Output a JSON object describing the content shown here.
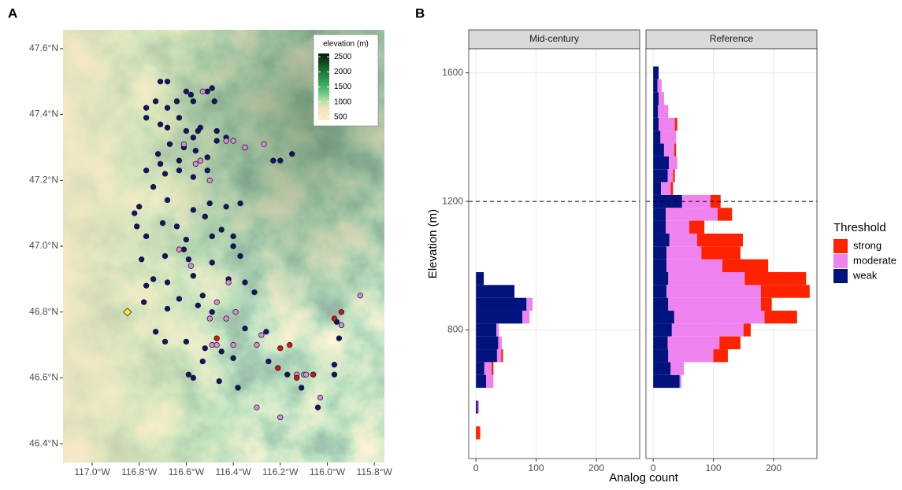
{
  "chart_data": [
    {
      "type": "map-scatter",
      "title": "A",
      "xlim": [
        -117.124,
        -115.757
      ],
      "ylim": [
        46.343,
        47.657
      ],
      "xticks": [
        {
          "value": -117.0,
          "label": "117.0°W"
        },
        {
          "value": -116.8,
          "label": "116.8°W"
        },
        {
          "value": -116.6,
          "label": "116.6°W"
        },
        {
          "value": -116.4,
          "label": "116.4°W"
        },
        {
          "value": -116.2,
          "label": "116.2°W"
        },
        {
          "value": -116.0,
          "label": "116.0°W"
        },
        {
          "value": -115.8,
          "label": "115.8°W"
        }
      ],
      "yticks": [
        {
          "value": 46.4,
          "label": "46.4°N"
        },
        {
          "value": 46.6,
          "label": "46.6°N"
        },
        {
          "value": 46.8,
          "label": "46.8°N"
        },
        {
          "value": 47.0,
          "label": "47.0°N"
        },
        {
          "value": 47.2,
          "label": "47.2°N"
        },
        {
          "value": 47.4,
          "label": "47.4°N"
        },
        {
          "value": 47.6,
          "label": "47.6°N"
        }
      ],
      "colorbar": {
        "title": "elevation (m)",
        "lim": [
          390,
          2610
        ],
        "ticks": [
          500,
          1000,
          1500,
          2000,
          2500
        ],
        "stops": [
          {
            "value": 390,
            "color": "#fde8c6"
          },
          {
            "value": 800,
            "color": "#f3e3b4"
          },
          {
            "value": 1100,
            "color": "#9fdca0"
          },
          {
            "value": 1500,
            "color": "#3fb36a"
          },
          {
            "value": 2000,
            "color": "#1c7a38"
          },
          {
            "value": 2610,
            "color": "#0a1a0a"
          }
        ]
      },
      "series": [
        {
          "color": "#14146e",
          "marker": "circle",
          "x": [
            -116.71,
            -116.68,
            -116.6,
            -116.58,
            -116.51,
            -116.49,
            -116.77,
            -116.73,
            -116.68,
            -116.64,
            -116.57,
            -116.48,
            -116.77,
            -116.71,
            -116.68,
            -116.63,
            -116.6,
            -116.55,
            -116.67,
            -116.61,
            -116.57,
            -116.54,
            -116.47,
            -116.72,
            -116.71,
            -116.63,
            -116.56,
            -116.51,
            -116.47,
            -116.43,
            -116.77,
            -116.69,
            -116.63,
            -116.57,
            -116.51,
            -116.74,
            -116.68,
            -116.57,
            -116.5,
            -116.43,
            -116.37,
            -116.23,
            -116.2,
            -116.15,
            -116.8,
            -116.82,
            -116.81,
            -116.77,
            -116.7,
            -116.64,
            -116.6,
            -116.52,
            -116.49,
            -116.45,
            -116.4,
            -116.4,
            -116.79,
            -116.69,
            -116.61,
            -116.59,
            -116.49,
            -116.37,
            -116.74,
            -116.77,
            -116.68,
            -116.57,
            -116.53,
            -116.42,
            -116.35,
            -116.78,
            -116.68,
            -116.63,
            -116.55,
            -116.49,
            -116.31,
            -116.73,
            -116.69,
            -116.6,
            -116.52,
            -116.45,
            -116.35,
            -116.26,
            -116.25,
            -116.59,
            -116.53,
            -116.46,
            -116.38,
            -116.4,
            -116.17,
            -116.11,
            -116.06,
            -115.97,
            -115.97,
            -115.95,
            -115.96,
            -116.04,
            -116.57
          ],
          "values": [
            47.5,
            47.5,
            47.47,
            47.46,
            47.47,
            47.48,
            47.42,
            47.44,
            47.42,
            47.44,
            47.44,
            47.44,
            47.39,
            47.37,
            47.36,
            47.39,
            47.35,
            47.35,
            47.31,
            47.3,
            47.33,
            47.36,
            47.35,
            47.28,
            47.25,
            47.26,
            47.29,
            47.27,
            47.32,
            47.33,
            47.23,
            47.22,
            47.23,
            47.21,
            47.23,
            47.18,
            47.14,
            47.11,
            47.13,
            47.12,
            47.13,
            47.26,
            47.26,
            47.28,
            47.12,
            47.1,
            47.06,
            47.03,
            47.07,
            47.06,
            47.02,
            47.09,
            47.03,
            47.05,
            47.03,
            47.0,
            46.96,
            46.97,
            46.99,
            46.96,
            46.95,
            46.97,
            46.9,
            46.88,
            46.89,
            46.91,
            46.85,
            46.9,
            46.89,
            46.83,
            46.81,
            46.84,
            46.82,
            46.8,
            46.86,
            46.74,
            46.71,
            46.71,
            46.69,
            46.68,
            46.75,
            46.74,
            46.65,
            46.61,
            46.65,
            46.59,
            46.57,
            46.66,
            46.61,
            46.57,
            46.61,
            46.61,
            46.64,
            46.72,
            46.77,
            46.51,
            46.6
          ]
        },
        {
          "color": "#dd88dd",
          "marker": "circle",
          "x": [
            -116.53,
            -116.61,
            -116.43,
            -116.4,
            -116.35,
            -116.27,
            -116.56,
            -116.54,
            -116.5,
            -116.63,
            -116.58,
            -116.42,
            -116.47,
            -116.43,
            -116.39,
            -116.5,
            -116.49,
            -116.47,
            -116.4,
            -116.3,
            -116.28,
            -116.13,
            -116.1,
            -116.3,
            -116.2,
            -116.03,
            -115.86,
            -115.94,
            -116.09
          ],
          "values": [
            47.47,
            47.31,
            47.32,
            47.32,
            47.3,
            47.31,
            47.25,
            47.26,
            47.2,
            46.99,
            46.94,
            46.89,
            46.83,
            46.78,
            46.8,
            46.78,
            46.7,
            46.7,
            46.7,
            46.7,
            46.73,
            46.61,
            46.61,
            46.51,
            46.48,
            46.54,
            46.85,
            46.76,
            46.61
          ]
        },
        {
          "color": "#dd1111",
          "marker": "circle",
          "x": [
            -115.94,
            -115.97,
            -116.2,
            -116.16,
            -116.21,
            -116.13,
            -116.06,
            -116.47
          ],
          "values": [
            46.8,
            46.78,
            46.69,
            46.7,
            46.63,
            46.6,
            46.61,
            46.72
          ]
        },
        {
          "color": "#ffee33",
          "marker": "diamond",
          "x": [
            -116.85
          ],
          "values": [
            46.8
          ]
        }
      ]
    },
    {
      "type": "stacked-histogram",
      "orientation": "horizontal",
      "title": "B",
      "xlabel": "Analog count",
      "ylabel": "Elevation (m)",
      "bins": [
        460,
        500,
        540,
        580,
        620,
        660,
        700,
        740,
        780,
        820,
        860,
        900,
        940,
        980,
        1020,
        1060,
        1100,
        1140,
        1180,
        1220,
        1260,
        1300,
        1340,
        1380,
        1420,
        1460,
        1500,
        1540,
        1580,
        1620
      ],
      "xlim": [
        -12,
        272
      ],
      "xticks": [
        0,
        100,
        200
      ],
      "ylim": [
        400,
        1675
      ],
      "yticks": [
        800,
        1200,
        1600
      ],
      "hline": 1200,
      "grid": true,
      "legend_title": "Threshold",
      "facets": [
        {
          "name": "Mid-century",
          "series": [
            {
              "name": "strong",
              "color": "#ff2200",
              "values": [
                7,
                0,
                0,
                0,
                0,
                3,
                3,
                0,
                0,
                0,
                0,
                0,
                0,
                0,
                0,
                0,
                0,
                0,
                0,
                0,
                0,
                0,
                0,
                0,
                0,
                0,
                0,
                0,
                0
              ]
            },
            {
              "name": "moderate",
              "color": "#ee82ee",
              "values": [
                0,
                0,
                2,
                0,
                12,
                12,
                7,
                6,
                4,
                12,
                10,
                0,
                0,
                0,
                0,
                0,
                0,
                0,
                0,
                0,
                0,
                0,
                0,
                0,
                0,
                0,
                0,
                0,
                0
              ]
            },
            {
              "name": "weak",
              "color": "#00137f",
              "values": [
                0,
                0,
                3,
                0,
                17,
                14,
                35,
                37,
                34,
                77,
                84,
                64,
                13,
                0,
                0,
                0,
                0,
                0,
                0,
                0,
                0,
                0,
                0,
                0,
                0,
                0,
                0,
                0,
                0
              ]
            }
          ]
        },
        {
          "name": "Reference",
          "series": [
            {
              "name": "strong",
              "color": "#ff2200",
              "values": [
                0,
                0,
                0,
                0,
                0,
                0,
                24,
                35,
                12,
                54,
                18,
                81,
                102,
                76,
                65,
                76,
                25,
                24,
                17,
                4,
                3,
                0,
                3,
                0,
                4,
                0,
                0,
                0,
                0
              ]
            },
            {
              "name": "moderate",
              "color": "#ee82ee",
              "values": [
                0,
                0,
                0,
                0,
                3,
                22,
                75,
                86,
                119,
                150,
                154,
                157,
                127,
                93,
                58,
                46,
                39,
                86,
                47,
                16,
                9,
                14,
                17,
                26,
                27,
                17,
                9,
                7,
                0
              ]
            },
            {
              "name": "weak",
              "color": "#00137f",
              "values": [
                0,
                0,
                0,
                0,
                44,
                29,
                25,
                24,
                31,
                35,
                25,
                22,
                25,
                22,
                22,
                27,
                21,
                21,
                48,
                13,
                24,
                26,
                18,
                12,
                9,
                8,
                9,
                7,
                9
              ]
            }
          ]
        }
      ]
    }
  ]
}
